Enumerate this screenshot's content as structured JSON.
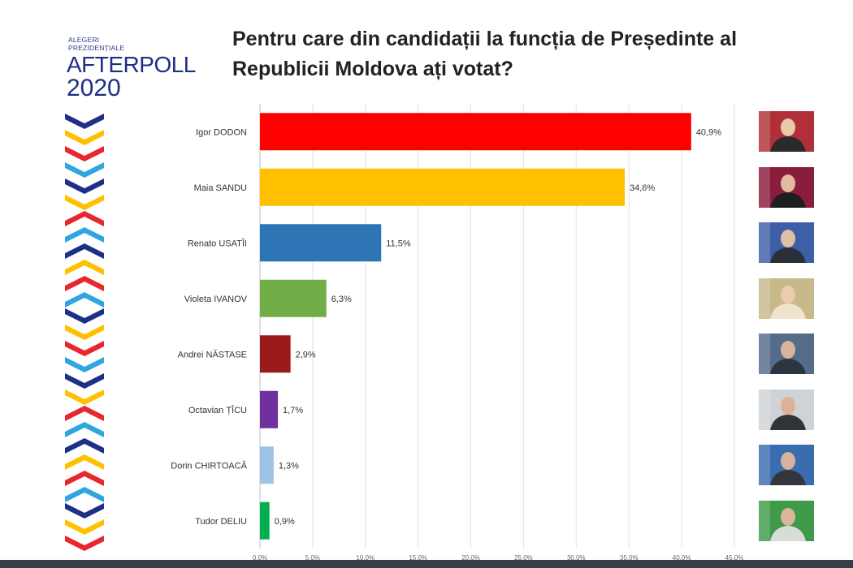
{
  "logo": {
    "line1": "ALEGERI",
    "line2": "PREZIDENȚIALE",
    "brand_a": "AFTER",
    "brand_b": "POLL",
    "year": "2020"
  },
  "chart_data": {
    "type": "bar",
    "orientation": "horizontal",
    "title": "Pentru care din candidații la funcția de Președinte al Republicii Moldova ați votat?",
    "categories": [
      "Igor DODON",
      "Maia SANDU",
      "Renato USATÎI",
      "Violeta IVANOV",
      "Andrei NĂSTASE",
      "Octavian ȚÎCU",
      "Dorin CHIRTOACĂ",
      "Tudor DELIU"
    ],
    "values": [
      40.9,
      34.6,
      11.5,
      6.3,
      2.9,
      1.7,
      1.3,
      0.9
    ],
    "value_labels": [
      "40,9%",
      "34,6%",
      "11,5%",
      "6,3%",
      "2,9%",
      "1,7%",
      "1,3%",
      "0,9%"
    ],
    "colors": [
      "#ff0000",
      "#ffc000",
      "#2e75b6",
      "#70ad47",
      "#9b1b1b",
      "#7030a0",
      "#9dc3e6",
      "#00b050"
    ],
    "xlim": [
      0,
      45
    ],
    "x_ticks": [
      0,
      5,
      10,
      15,
      20,
      25,
      30,
      35,
      40,
      45
    ],
    "x_tick_labels": [
      "0,0%",
      "5,0%",
      "10,0%",
      "15,0%",
      "20,0%",
      "25,0%",
      "30,0%",
      "35,0%",
      "40,0%",
      "45,0%"
    ],
    "grid": true,
    "legend": "none"
  }
}
